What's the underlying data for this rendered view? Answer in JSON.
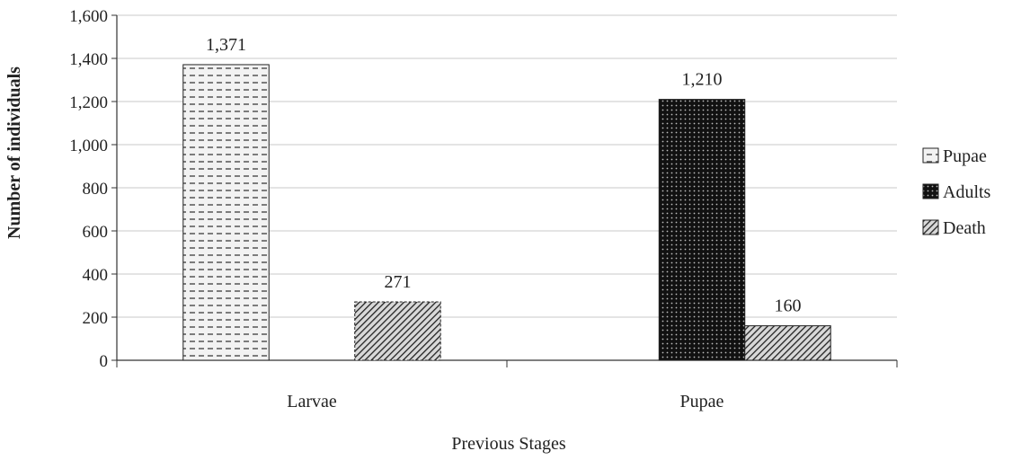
{
  "chart_data": {
    "type": "bar",
    "categories": [
      "Larvae",
      "Pupae"
    ],
    "series": [
      {
        "name": "Pupae",
        "values": [
          1371,
          null
        ],
        "pattern": "dashes"
      },
      {
        "name": "Adults",
        "values": [
          null,
          1210
        ],
        "pattern": "dots"
      },
      {
        "name": "Death",
        "values": [
          271,
          160
        ],
        "pattern": "diagonal"
      }
    ],
    "data_labels": [
      {
        "series": "Pupae",
        "category": "Larvae",
        "text": "1,371"
      },
      {
        "series": "Death",
        "category": "Larvae",
        "text": "271"
      },
      {
        "series": "Adults",
        "category": "Pupae",
        "text": "1,210"
      },
      {
        "series": "Death",
        "category": "Pupae",
        "text": "160"
      }
    ],
    "yticks": [
      0,
      200,
      400,
      600,
      800,
      1000,
      1200,
      1400,
      1600
    ],
    "ytick_labels": [
      "0",
      "200",
      "400",
      "600",
      "800",
      "1,000",
      "1,200",
      "1,400",
      "1,600"
    ],
    "ylim": [
      0,
      1600
    ],
    "xlabel": "Previous Stages",
    "ylabel": "Number  of individuals",
    "grid": true,
    "legend_position": "right"
  }
}
